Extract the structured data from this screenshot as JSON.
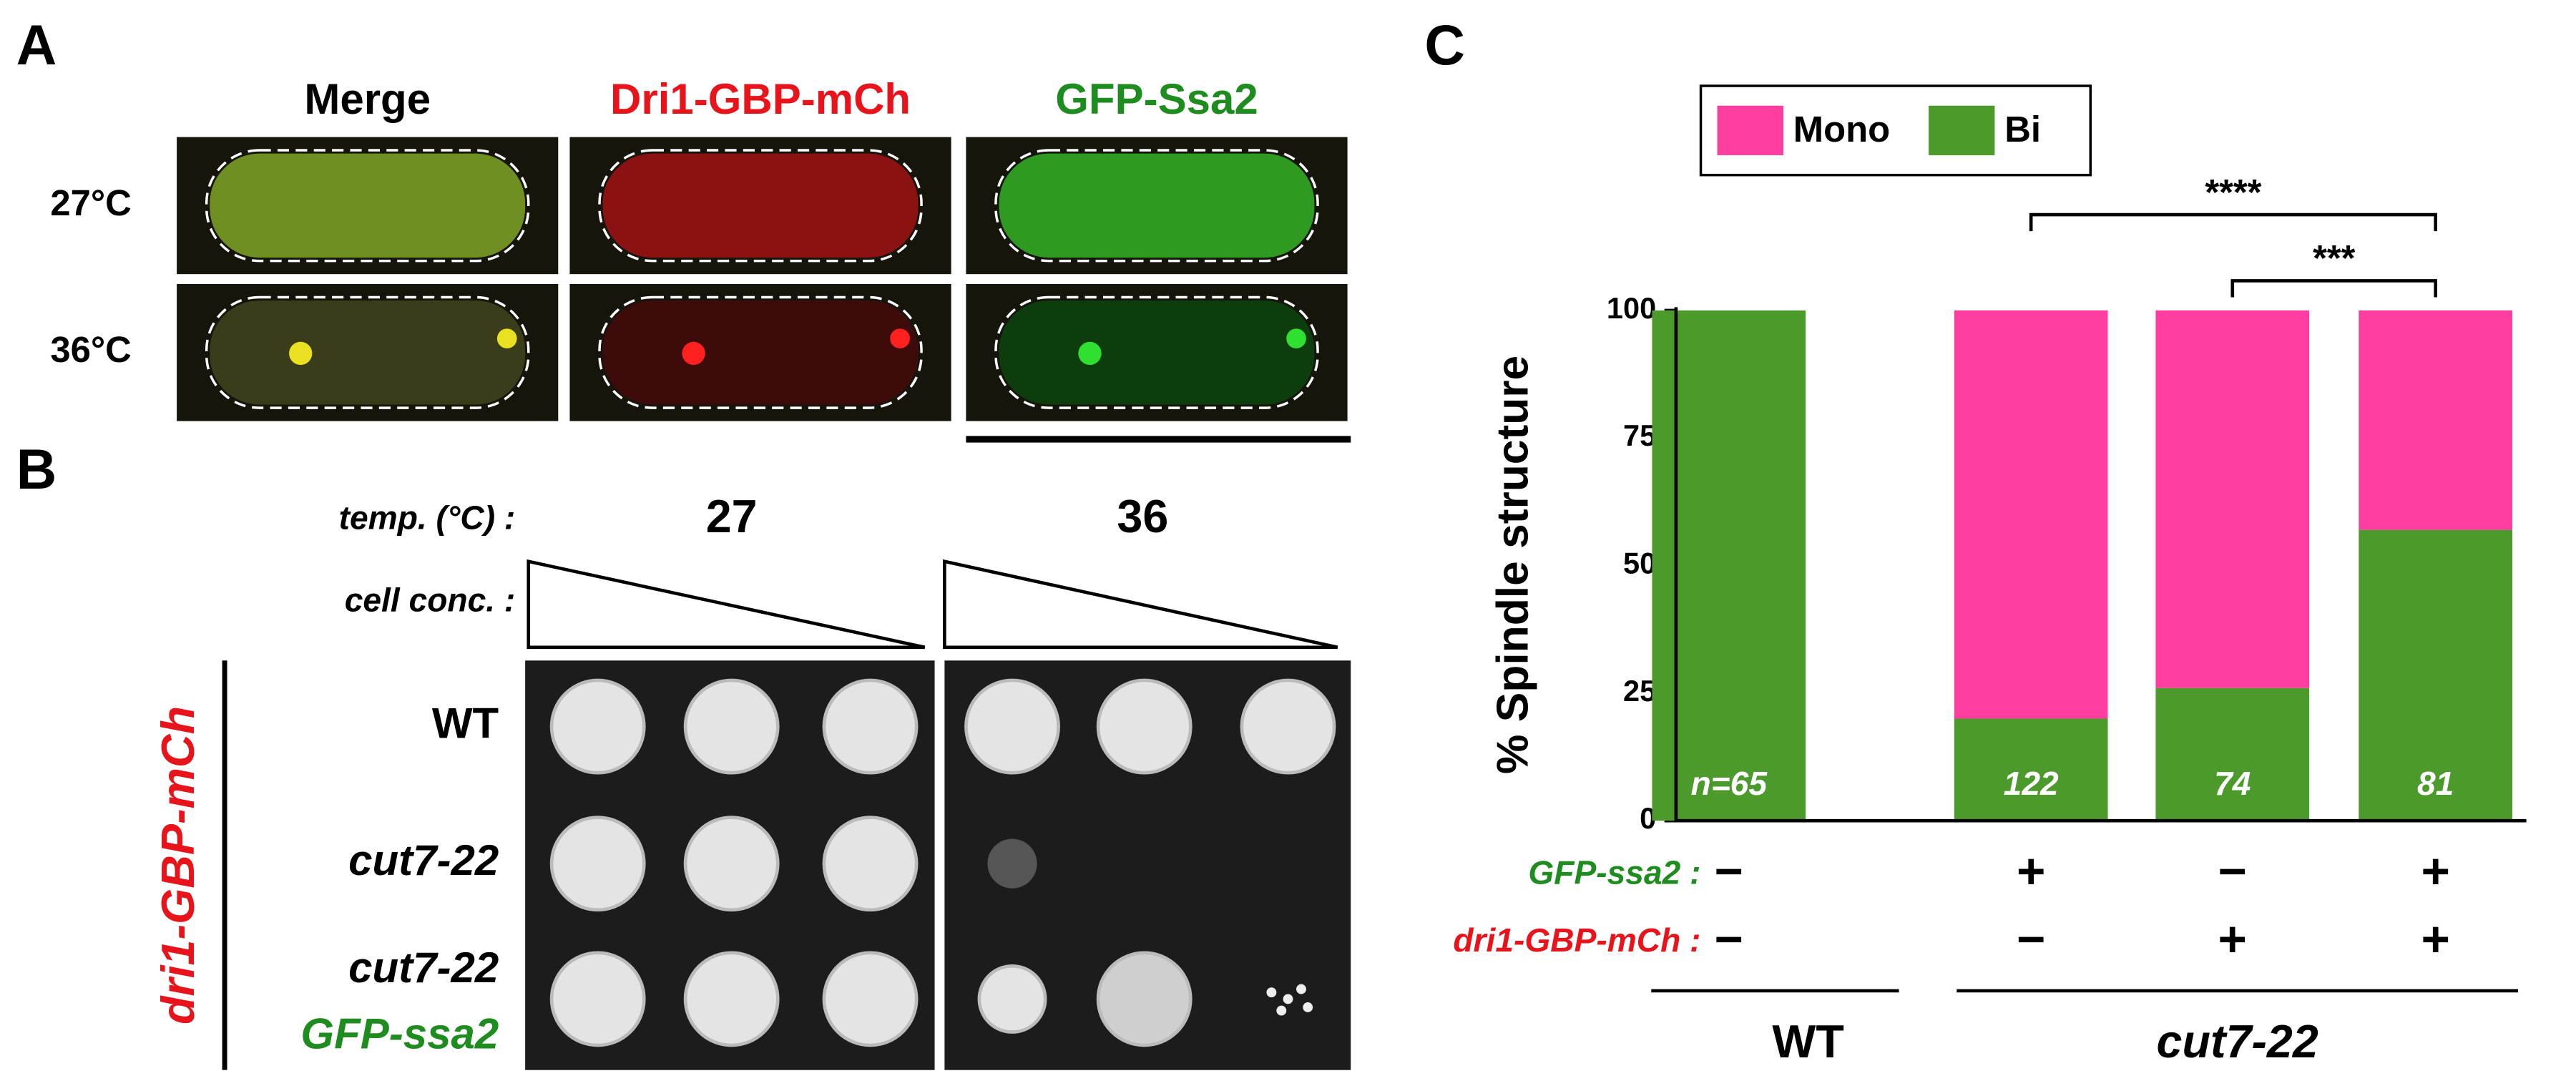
{
  "panel_labels": [
    "A",
    "B",
    "C"
  ],
  "panel_a": {
    "channels": [
      {
        "label": "Merge",
        "color": "#000000"
      },
      {
        "label": "Dri1-GBP-mCh",
        "color": "#e8141c"
      },
      {
        "label": "GFP-Ssa2",
        "color": "#1e8c1e"
      }
    ],
    "rows": [
      "27°C",
      "36°C"
    ]
  },
  "panel_b": {
    "temp_label": "temp. (°C) :",
    "temperatures": [
      27,
      36
    ],
    "conc_label": "cell conc. :",
    "side_label": "dri1-GBP-mCh",
    "strains": [
      {
        "name": "WT"
      },
      {
        "name": "cut7-22"
      },
      {
        "name": "cut7-22",
        "plasmid": "GFP-ssa2"
      }
    ]
  },
  "chart_data": {
    "type": "bar",
    "stacked": true,
    "ylabel": "% Spindle structure",
    "categories": [
      null,
      null,
      null,
      null
    ],
    "series": [
      {
        "name": "Mono",
        "color": "#ff3d9e",
        "values": [
          0,
          80,
          74,
          43
        ]
      },
      {
        "name": "Bi",
        "color": "#4b9a2b",
        "values": [
          100,
          20,
          26,
          57
        ]
      }
    ],
    "ylim": [
      0,
      100
    ],
    "yticks": [
      0,
      25,
      50,
      75,
      100
    ],
    "legend": "top-left",
    "bar_annotations": [
      "n=65",
      "122",
      "74",
      "81"
    ],
    "genotypes": [
      {
        "label": "GFP-ssa2 :",
        "color": "#1e8c1e",
        "values": [
          "−",
          "+",
          "−",
          "+"
        ]
      },
      {
        "label": "dri1-GBP-mCh :",
        "color": "#e8141c",
        "values": [
          "−",
          "−",
          "+",
          "+"
        ]
      }
    ],
    "groups": [
      "WT",
      "cut7-22"
    ],
    "significance": [
      {
        "label": "****",
        "between": [
          1,
          3
        ]
      },
      {
        "label": "***",
        "between": [
          2,
          3
        ]
      }
    ]
  }
}
